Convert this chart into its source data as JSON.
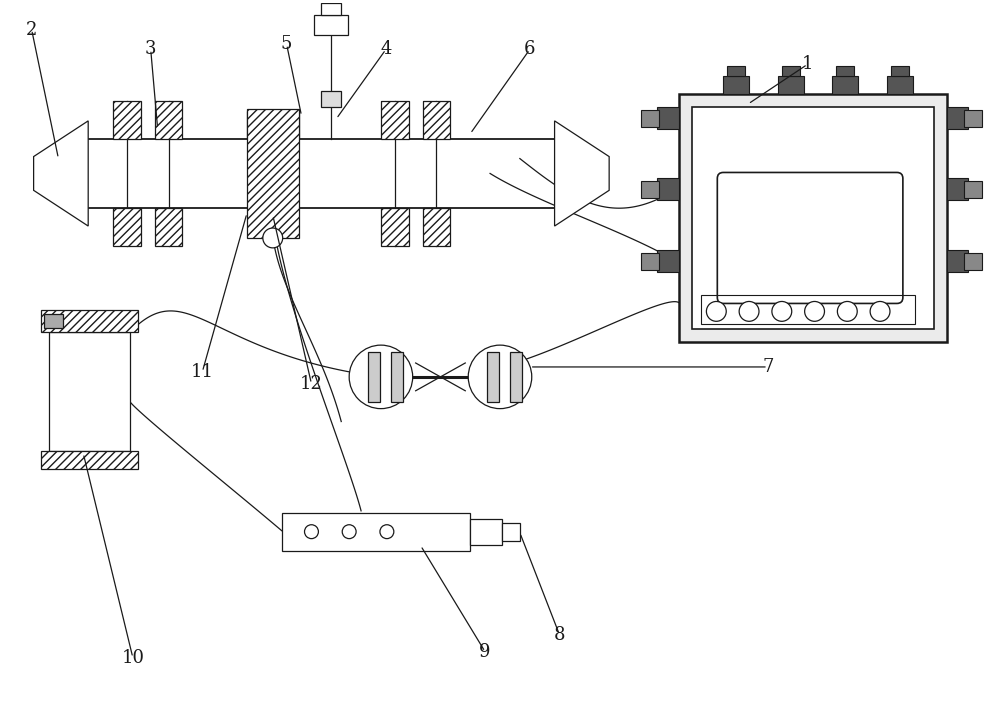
{
  "bg_color": "#ffffff",
  "line_color": "#1a1a1a",
  "label_fontsize": 13,
  "lw_main": 1.3,
  "lw_thin": 0.9
}
